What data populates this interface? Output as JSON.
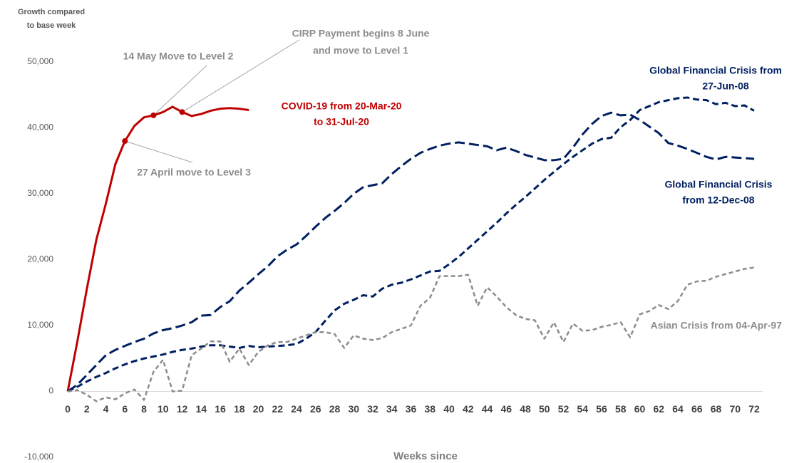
{
  "chart_data": {
    "type": "line",
    "y_axis_label": [
      "Growth compared",
      "to base week"
    ],
    "x_axis_label": "Weeks since",
    "x": [
      0,
      1,
      2,
      3,
      4,
      5,
      6,
      7,
      8,
      9,
      10,
      11,
      12,
      13,
      14,
      15,
      16,
      17,
      18,
      19,
      20,
      21,
      22,
      23,
      24,
      25,
      26,
      27,
      28,
      29,
      30,
      31,
      32,
      33,
      34,
      35,
      36,
      37,
      38,
      39,
      40,
      41,
      42,
      43,
      44,
      45,
      46,
      47,
      48,
      49,
      50,
      51,
      52,
      53,
      54,
      55,
      56,
      57,
      58,
      59,
      60,
      61,
      62,
      63,
      64,
      65,
      66,
      67,
      68,
      69,
      70,
      71,
      72
    ],
    "xlim": [
      0,
      72
    ],
    "xticks": [
      0,
      2,
      4,
      6,
      8,
      10,
      12,
      14,
      16,
      18,
      20,
      22,
      24,
      26,
      28,
      30,
      32,
      34,
      36,
      38,
      40,
      42,
      44,
      46,
      48,
      50,
      52,
      54,
      56,
      58,
      60,
      62,
      64,
      66,
      68,
      70,
      72
    ],
    "ylim": [
      -10000,
      50000
    ],
    "yticks": [
      {
        "value": -10000,
        "label": "-10,000"
      },
      0,
      {
        "value": 10000,
        "label": "10,000"
      },
      {
        "value": 20000,
        "label": "20,000"
      },
      {
        "value": 30000,
        "label": "30,000"
      },
      {
        "value": 40000,
        "label": "40,000"
      },
      {
        "value": 50000,
        "label": "50,000"
      }
    ],
    "grid": false,
    "series": [
      {
        "name": [
          "COVID-19 from 20-Mar-20",
          "to 31-Jul-20"
        ],
        "color": "#c00000",
        "values": [
          0,
          7500,
          15500,
          23000,
          28500,
          34500,
          38000,
          40300,
          41600,
          41900,
          42400,
          43200,
          42400,
          41800,
          42100,
          42600,
          42900,
          43000,
          42900,
          42700,
          null,
          null,
          null,
          null,
          null,
          null,
          null,
          null,
          null,
          null,
          null,
          null,
          null,
          null,
          null,
          null,
          null,
          null,
          null,
          null,
          null,
          null,
          null,
          null,
          null,
          null,
          null,
          null,
          null,
          null,
          null,
          null,
          null,
          null,
          null,
          null,
          null,
          null,
          null,
          null,
          null,
          null,
          null,
          null,
          null,
          null,
          null,
          null,
          null,
          null,
          null,
          null,
          null
        ]
      },
      {
        "name": [
          "Global Financial Crisis",
          "from 12-Dec-08"
        ],
        "color": "#002060",
        "values": [
          0,
          1000,
          2500,
          4000,
          5500,
          6300,
          6900,
          7500,
          8000,
          8800,
          9300,
          9600,
          10000,
          10500,
          11500,
          11600,
          12800,
          13700,
          15300,
          16500,
          17800,
          19000,
          20500,
          21500,
          22300,
          23600,
          25000,
          26300,
          27400,
          28600,
          30000,
          31000,
          31300,
          31600,
          33000,
          34200,
          35300,
          36200,
          36800,
          37300,
          37600,
          37800,
          37600,
          37400,
          37200,
          36600,
          37000,
          36500,
          35900,
          35500,
          35100,
          35100,
          35300,
          37000,
          39000,
          40600,
          41800,
          42300,
          41900,
          42000,
          41200,
          40200,
          39200,
          37700,
          37300,
          36800,
          36200,
          35600,
          35200,
          35600,
          35500,
          35400,
          35300
        ]
      },
      {
        "name": [
          "Global Financial Crisis from",
          "27-Jun-08"
        ],
        "color": "#002060",
        "values": [
          0,
          700,
          1500,
          2200,
          2800,
          3500,
          4100,
          4600,
          5000,
          5300,
          5600,
          6000,
          6300,
          6500,
          6800,
          7000,
          7000,
          6800,
          6600,
          6900,
          6700,
          6800,
          6900,
          7000,
          7200,
          8000,
          9000,
          10700,
          12300,
          13300,
          13900,
          14600,
          14400,
          15600,
          16200,
          16500,
          17000,
          17600,
          18200,
          18300,
          19300,
          20400,
          21700,
          23000,
          24300,
          25600,
          27000,
          28300,
          29500,
          30800,
          32100,
          33300,
          34500,
          35600,
          36600,
          37600,
          38300,
          38500,
          40100,
          41200,
          42700,
          43300,
          43900,
          44200,
          44500,
          44600,
          44300,
          44200,
          43600,
          43800,
          43300,
          43400,
          42600
        ]
      },
      {
        "name": [
          "Asian Crisis from 04-Apr-97"
        ],
        "color": "#8c8c8c",
        "values": [
          0,
          200,
          -500,
          -1500,
          -900,
          -1200,
          -300,
          300,
          -1300,
          3000,
          4800,
          0,
          100,
          5500,
          6500,
          7600,
          7600,
          4500,
          6500,
          4000,
          6000,
          7000,
          7500,
          7500,
          8000,
          8500,
          9000,
          9000,
          8700,
          6600,
          8500,
          8000,
          7800,
          8100,
          9000,
          9500,
          10000,
          13000,
          14200,
          17500,
          17500,
          17500,
          17700,
          13000,
          15800,
          14400,
          12800,
          11600,
          11000,
          10800,
          8000,
          10500,
          7500,
          10300,
          9200,
          9300,
          9800,
          10100,
          10500,
          8200,
          11700,
          12200,
          13100,
          12500,
          13700,
          16200,
          16700,
          16800,
          17400,
          17800,
          18200,
          18600,
          18800
        ]
      }
    ],
    "annotations": [
      {
        "text": [
          "14 May Move to Level 2"
        ],
        "x": 9
      },
      {
        "text": [
          "CIRP Payment begins 8 June",
          "and move to Level 1"
        ],
        "x": 12
      },
      {
        "text": [
          "27 April move to Level 3"
        ],
        "x": 6
      }
    ]
  }
}
